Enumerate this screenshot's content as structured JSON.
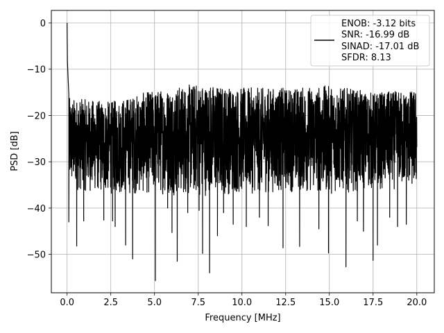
{
  "chart_data": {
    "type": "line",
    "title": "",
    "xlabel": "Frequency [MHz]",
    "ylabel": "PSD [dB]",
    "xlim": [
      -0.9,
      21.0
    ],
    "ylim": [
      -58.3,
      2.7
    ],
    "grid": true,
    "legend_position": "top-right",
    "x_ticks": [
      0.0,
      2.5,
      5.0,
      7.5,
      10.0,
      12.5,
      15.0,
      17.5,
      20.0
    ],
    "x_tick_labels": [
      "0.0",
      "2.5",
      "5.0",
      "7.5",
      "10.0",
      "12.5",
      "15.0",
      "17.5",
      "20.0"
    ],
    "y_ticks": [
      0,
      -10,
      -20,
      -30,
      -40,
      -50
    ],
    "y_tick_labels": [
      "0",
      "−10",
      "−20",
      "−30",
      "−40",
      "−50"
    ],
    "legend": {
      "lines": [
        "ENOB: -3.12 bits",
        "SNR: -16.99 dB",
        "SINAD: -17.01 dB",
        "SFDR: 8.13"
      ]
    },
    "series": [
      {
        "color": "#000000",
        "x_range": [
          0.0,
          20.0
        ],
        "notes_peaks": [
          [
            0.0,
            0.0
          ],
          [
            0.02,
            -8.3
          ],
          [
            0.06,
            -12.0
          ],
          [
            0.1,
            -15.5
          ]
        ],
        "envelope_upper": [
          [
            0.0,
            -16.2
          ],
          [
            2.5,
            -17.0
          ],
          [
            5.0,
            -14.5
          ],
          [
            7.5,
            -13.0
          ],
          [
            10.0,
            -14.0
          ],
          [
            12.5,
            -14.0
          ],
          [
            15.0,
            -13.5
          ],
          [
            17.5,
            -15.0
          ],
          [
            20.0,
            -14.5
          ]
        ],
        "envelope_lower": [
          [
            0.0,
            -36.0
          ],
          [
            2.5,
            -37.0
          ],
          [
            5.0,
            -37.0
          ],
          [
            7.5,
            -37.5
          ],
          [
            10.0,
            -37.0
          ],
          [
            12.5,
            -36.5
          ],
          [
            15.0,
            -37.0
          ],
          [
            17.5,
            -36.0
          ],
          [
            20.0,
            -36.0
          ]
        ],
        "dips": [
          [
            0.1,
            -43.0
          ],
          [
            0.55,
            -48.2
          ],
          [
            0.95,
            -42.8
          ],
          [
            2.1,
            -42.6
          ],
          [
            2.6,
            -42.8
          ],
          [
            2.75,
            -44.0
          ],
          [
            3.35,
            -48.0
          ],
          [
            3.75,
            -51.0
          ],
          [
            5.05,
            -55.7
          ],
          [
            5.75,
            -40.0
          ],
          [
            6.0,
            -45.3
          ],
          [
            6.3,
            -51.5
          ],
          [
            6.9,
            -41.0
          ],
          [
            7.55,
            -40.5
          ],
          [
            7.75,
            -49.8
          ],
          [
            8.15,
            -54.0
          ],
          [
            8.6,
            -46.0
          ],
          [
            8.95,
            -41.0
          ],
          [
            9.5,
            -43.5
          ],
          [
            10.25,
            -44.0
          ],
          [
            11.0,
            -42.0
          ],
          [
            11.5,
            -43.8
          ],
          [
            12.35,
            -48.6
          ],
          [
            13.3,
            -48.3
          ],
          [
            14.4,
            -44.5
          ],
          [
            14.95,
            -49.7
          ],
          [
            15.95,
            -52.7
          ],
          [
            16.6,
            -42.8
          ],
          [
            16.95,
            -45.0
          ],
          [
            17.5,
            -51.3
          ],
          [
            17.75,
            -48.0
          ],
          [
            18.45,
            -42.0
          ],
          [
            18.9,
            -44.0
          ],
          [
            19.4,
            -43.5
          ]
        ]
      }
    ]
  }
}
